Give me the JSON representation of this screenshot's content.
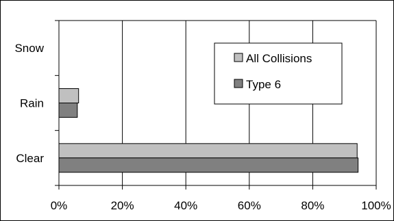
{
  "chart_data": {
    "type": "bar",
    "orientation": "horizontal",
    "categories": [
      "Snow",
      "Rain",
      "Clear"
    ],
    "x_ticks": [
      "0%",
      "20%",
      "40%",
      "60%",
      "80%",
      "100%"
    ],
    "xlim": [
      0,
      100
    ],
    "grid": "vertical",
    "legend_position": "top-right",
    "series": [
      {
        "name": "All Collisions",
        "color": "#c0c0c0",
        "values": [
          0,
          6.2,
          94.0
        ]
      },
      {
        "name": "Type 6",
        "color": "#808080",
        "values": [
          0,
          5.8,
          94.3
        ]
      }
    ]
  }
}
